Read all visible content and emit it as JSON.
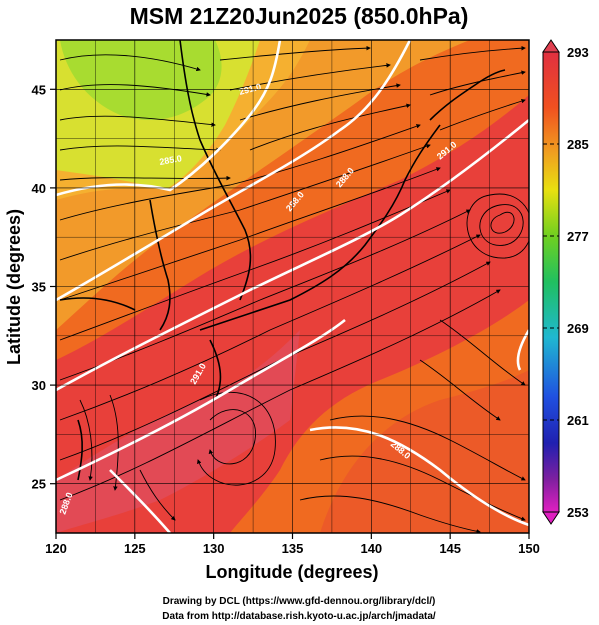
{
  "title": "MSM 21Z20Jun2025 (850.0hPa)",
  "x_axis": {
    "label": "Longitude (degrees)",
    "range": [
      120,
      150
    ],
    "ticks": [
      "120",
      "125",
      "130",
      "135",
      "140",
      "145",
      "150"
    ]
  },
  "y_axis": {
    "label": "Latitude  (degrees)",
    "range": [
      22.5,
      47.5
    ],
    "ticks": [
      "25",
      "30",
      "35",
      "40",
      "45"
    ]
  },
  "colorbar": {
    "range": [
      253,
      293
    ],
    "labels": [
      "293",
      "285",
      "277",
      "269",
      "261",
      "253"
    ],
    "colors": [
      "#e03060",
      "#f03020",
      "#f0a020",
      "#e8e010",
      "#80d820",
      "#20c040",
      "#20c0c0",
      "#2060e0",
      "#2020c0",
      "#8020a0",
      "#e020c0"
    ]
  },
  "contour_labels": [
    "285.0",
    "288.0",
    "288.0",
    "291.0",
    "291.0",
    "288.0",
    "291.0",
    "288.0"
  ],
  "credits": {
    "line1": "Drawing by DCL (https://www.gfd-dennou.org/library/dcl/)",
    "line2": "Data from http://database.rish.kyoto-u.ac.jp/arch/jmadata/"
  },
  "colors": {
    "warm_core": "#e8403a",
    "warm": "#f06a20",
    "mid": "#f29a2a",
    "cool": "#d8e030",
    "cold": "#8ed830",
    "contour": "#ffffff",
    "streamline": "#000000"
  }
}
